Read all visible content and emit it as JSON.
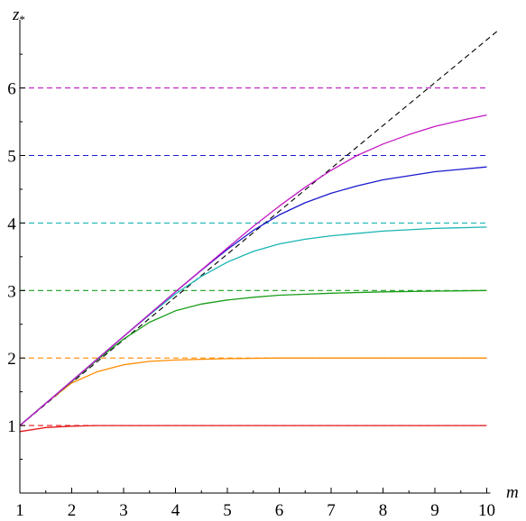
{
  "chart_data": {
    "type": "line",
    "xlabel": "m",
    "ylabel": "z",
    "ylabel_subscript": "*",
    "xlim": [
      1,
      10
    ],
    "ylim": [
      0,
      6.8
    ],
    "x_ticks": [
      "1",
      "2",
      "3",
      "4",
      "5",
      "6",
      "7",
      "8",
      "9",
      "10"
    ],
    "y_ticks": [
      "1",
      "2",
      "3",
      "4",
      "5",
      "6"
    ],
    "grid": false,
    "legend": "none",
    "diagonal": {
      "style": "dashed",
      "color": "#000000",
      "x": [
        1,
        10.2
      ],
      "y": [
        1,
        6.84
      ]
    },
    "reference_lines": [
      {
        "y": 1,
        "color": "#e41a1c"
      },
      {
        "y": 2,
        "color": "#ff8c00"
      },
      {
        "y": 3,
        "color": "#1a9e1a"
      },
      {
        "y": 4,
        "color": "#1ab4b4"
      },
      {
        "y": 5,
        "color": "#1a1acc"
      },
      {
        "y": 6,
        "color": "#c41ac4"
      }
    ],
    "series": [
      {
        "color": "#e41a1c",
        "x": [
          1,
          1.5,
          2,
          2.5,
          3,
          4,
          5,
          6,
          7,
          8,
          9,
          10
        ],
        "y": [
          0.91,
          0.97,
          0.99,
          1.0,
          1.0,
          1.0,
          1.0,
          1.0,
          1.0,
          1.0,
          1.0,
          1.0
        ]
      },
      {
        "color": "#ff8c00",
        "x": [
          1,
          1.5,
          2,
          2.5,
          3,
          3.5,
          4,
          5,
          6,
          7,
          8,
          9,
          10
        ],
        "y": [
          1.0,
          1.33,
          1.63,
          1.8,
          1.9,
          1.95,
          1.97,
          1.99,
          2.0,
          2.0,
          2.0,
          2.0,
          2.0
        ]
      },
      {
        "color": "#1a9e1a",
        "x": [
          1,
          1.5,
          2,
          2.5,
          3,
          3.5,
          4,
          4.5,
          5,
          5.5,
          6,
          7,
          8,
          9,
          10
        ],
        "y": [
          1.0,
          1.33,
          1.65,
          1.98,
          2.28,
          2.53,
          2.7,
          2.8,
          2.86,
          2.9,
          2.93,
          2.96,
          2.98,
          2.99,
          3.0
        ]
      },
      {
        "color": "#1ab4b4",
        "x": [
          1,
          1.5,
          2,
          2.5,
          3,
          3.5,
          4,
          4.5,
          5,
          5.5,
          6,
          6.5,
          7,
          8,
          9,
          10
        ],
        "y": [
          1.0,
          1.33,
          1.66,
          1.99,
          2.32,
          2.64,
          2.95,
          3.21,
          3.42,
          3.58,
          3.69,
          3.76,
          3.81,
          3.88,
          3.92,
          3.94
        ]
      },
      {
        "color": "#1a1acc",
        "x": [
          1,
          2,
          3,
          4,
          4.5,
          5,
          5.5,
          6,
          6.5,
          7,
          7.5,
          8,
          9,
          10
        ],
        "y": [
          1.0,
          1.66,
          2.32,
          2.98,
          3.3,
          3.61,
          3.89,
          4.12,
          4.3,
          4.44,
          4.55,
          4.64,
          4.76,
          4.83
        ]
      },
      {
        "color": "#c41ac4",
        "x": [
          1,
          2,
          3,
          4,
          5,
          5.5,
          6,
          6.5,
          7,
          7.5,
          8,
          8.5,
          9,
          9.5,
          10
        ],
        "y": [
          1.0,
          1.66,
          2.32,
          2.98,
          3.63,
          3.95,
          4.25,
          4.53,
          4.78,
          5.0,
          5.17,
          5.31,
          5.43,
          5.52,
          5.6
        ]
      }
    ]
  }
}
